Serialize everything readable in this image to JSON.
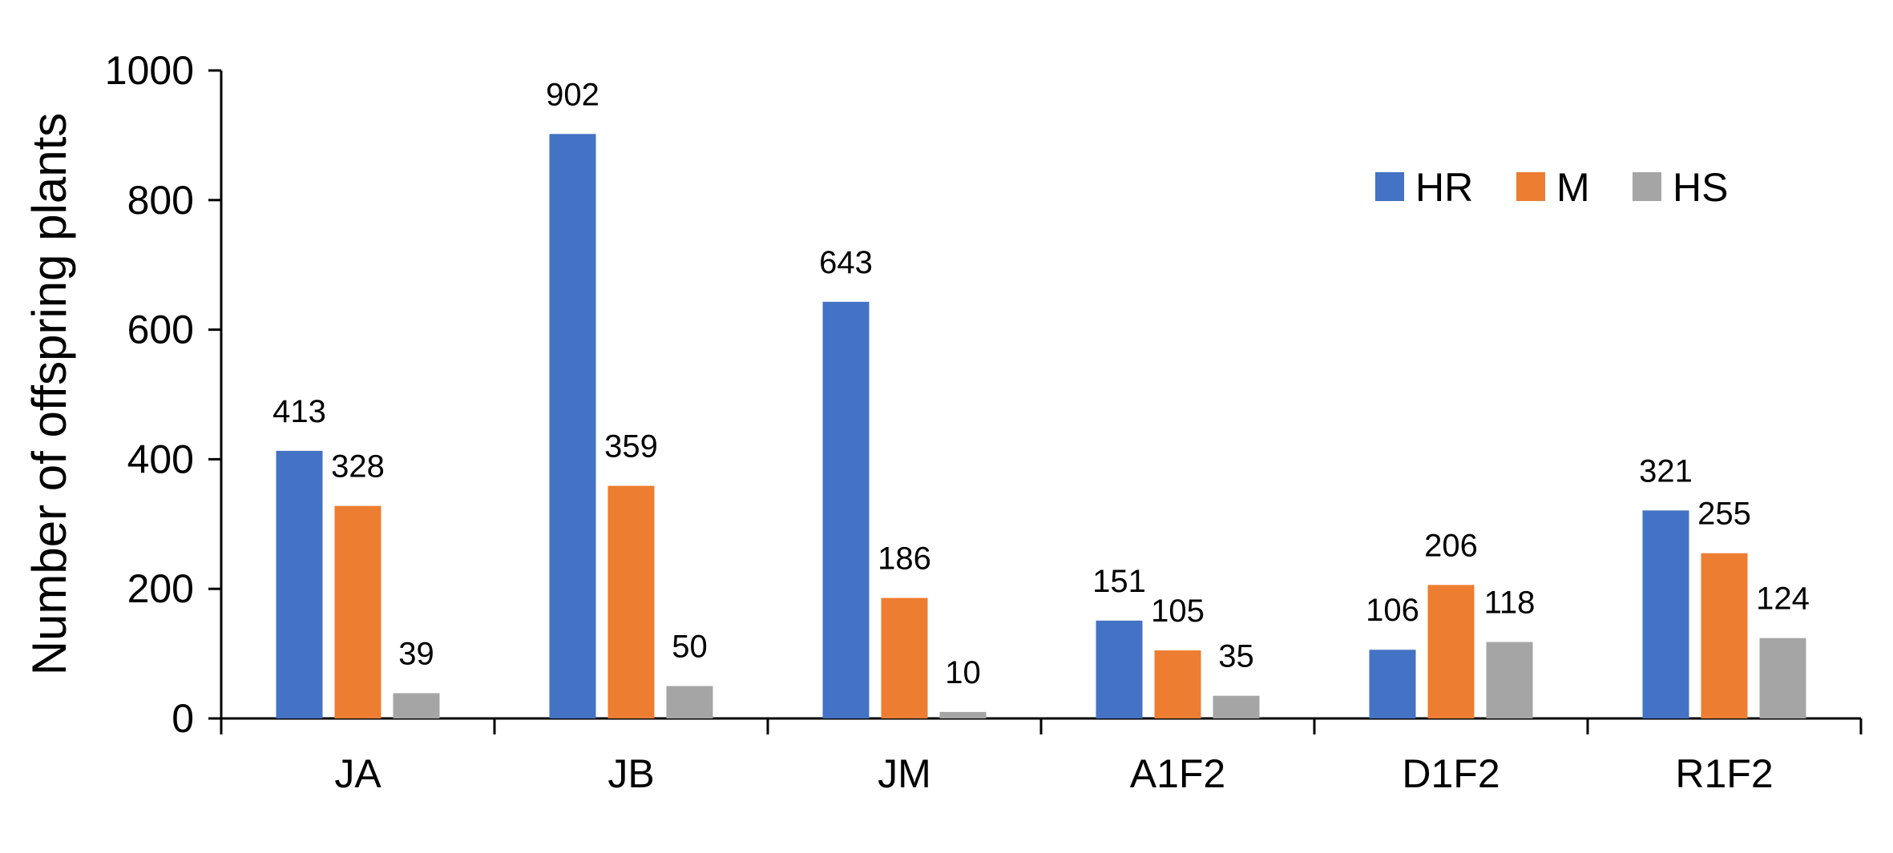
{
  "chart_data": {
    "type": "bar",
    "title": "",
    "xlabel": "",
    "ylabel": "Number of offspring plants",
    "ylim": [
      0,
      1000
    ],
    "yticks": [
      0,
      200,
      400,
      600,
      800,
      1000
    ],
    "categories": [
      "JA",
      "JB",
      "JM",
      "A1F2",
      "D1F2",
      "R1F2"
    ],
    "series": [
      {
        "name": "HR",
        "color": "#4472C4",
        "values": [
          413,
          902,
          643,
          151,
          106,
          321
        ]
      },
      {
        "name": "M",
        "color": "#ED7D31",
        "values": [
          328,
          359,
          186,
          105,
          206,
          255
        ]
      },
      {
        "name": "HS",
        "color": "#A5A5A5",
        "values": [
          39,
          50,
          10,
          35,
          118,
          124
        ]
      }
    ],
    "grid": false,
    "legend_position": "top-right",
    "data_labels": true
  }
}
